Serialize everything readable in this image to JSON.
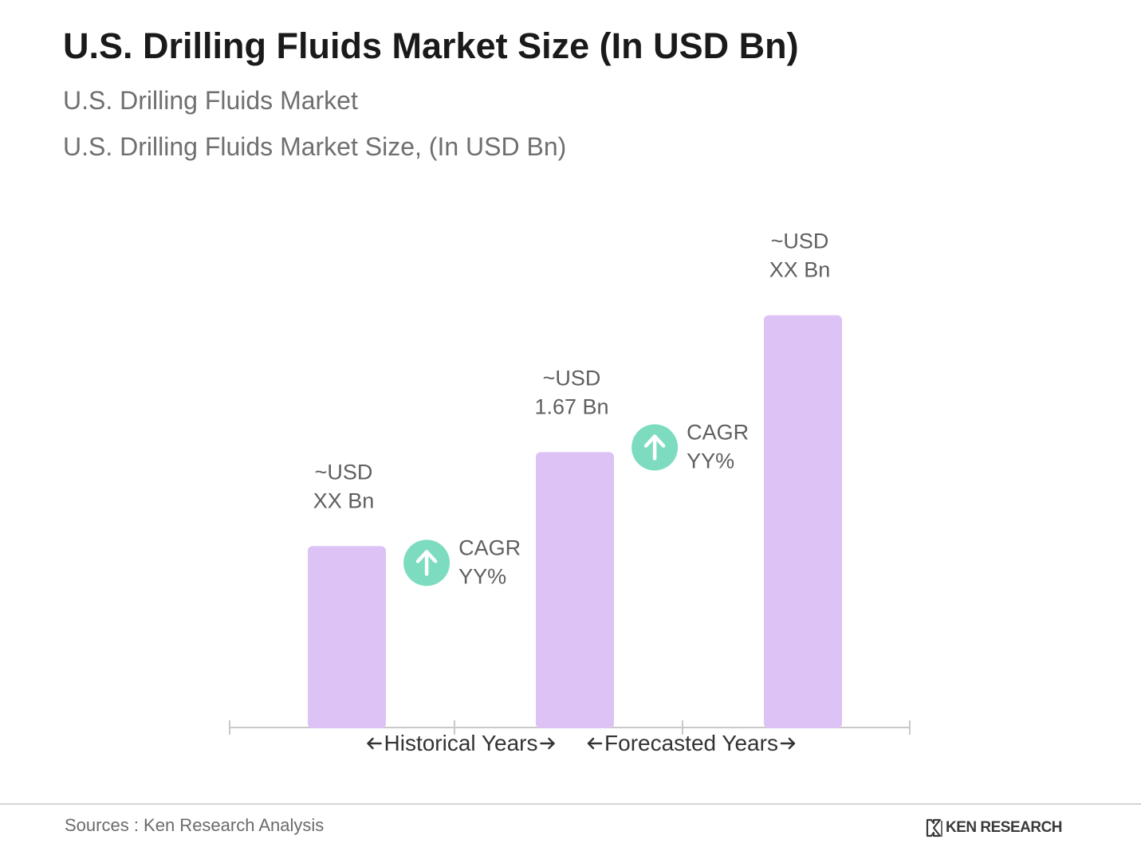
{
  "header": {
    "title": "U.S. Drilling Fluids Market Size (In USD Bn)",
    "subtitle": "U.S. Drilling Fluids Market",
    "subtitle2": "U.S. Drilling Fluids Market Size, (In USD Bn)"
  },
  "chart_data": {
    "type": "bar",
    "categories": [
      "",
      "",
      ""
    ],
    "values": [
      1.1,
      1.67,
      2.5
    ],
    "value_labels": [
      [
        "~USD",
        "XX Bn"
      ],
      [
        "~USD",
        "1.67 Bn"
      ],
      [
        "~USD",
        "XX Bn"
      ]
    ],
    "ylim": [
      0,
      3.3
    ],
    "grid": false,
    "bar_color": "#dcc2f5",
    "growth_annotations": [
      {
        "lines": [
          "CAGR",
          "YY%"
        ],
        "between": [
          0,
          1
        ],
        "icon": "arrow-up-icon",
        "color": "#7ddcbf"
      },
      {
        "lines": [
          "CAGR",
          "YY%"
        ],
        "between": [
          1,
          2
        ],
        "icon": "arrow-up-icon",
        "color": "#7ddcbf"
      }
    ],
    "period_labels": [
      "Historical Years",
      "Forecasted Years"
    ]
  },
  "footer": {
    "source": "Sources : Ken Research Analysis",
    "logo_text": "KEN RESEARCH"
  }
}
